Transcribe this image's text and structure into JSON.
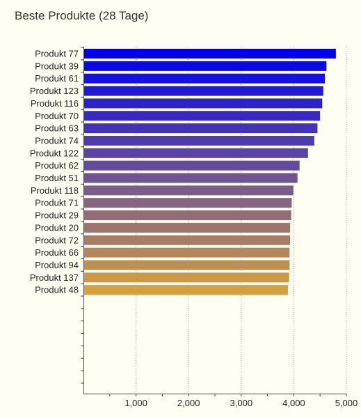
{
  "chart_data": {
    "type": "bar",
    "orientation": "horizontal",
    "title": "Beste Produkte (28 Tage)",
    "xlabel": "",
    "ylabel": "",
    "xlim": [
      0,
      5000
    ],
    "x_ticks": [
      1000,
      2000,
      3000,
      4000,
      5000
    ],
    "x_tick_labels": [
      "1,000",
      "2,000",
      "3,000",
      "4,000",
      "5,000"
    ],
    "grid": "vertical dotted",
    "legend": "none",
    "categories": [
      "Produkt 77",
      "Produkt 39",
      "Produkt 61",
      "Produkt 123",
      "Produkt 116",
      "Produkt 70",
      "Produkt 63",
      "Produkt 74",
      "Produkt 122",
      "Produkt 62",
      "Produkt 51",
      "Produkt 118",
      "Produkt 71",
      "Produkt 29",
      "Produkt 20",
      "Produkt 72",
      "Produkt 66",
      "Produkt 94",
      "Produkt 137",
      "Produkt 48"
    ],
    "values": [
      4800,
      4620,
      4590,
      4560,
      4540,
      4500,
      4450,
      4390,
      4270,
      4110,
      4070,
      3990,
      3960,
      3950,
      3930,
      3930,
      3920,
      3920,
      3910,
      3890
    ],
    "color_start": "#0000ee",
    "color_end": "#d4a040"
  }
}
